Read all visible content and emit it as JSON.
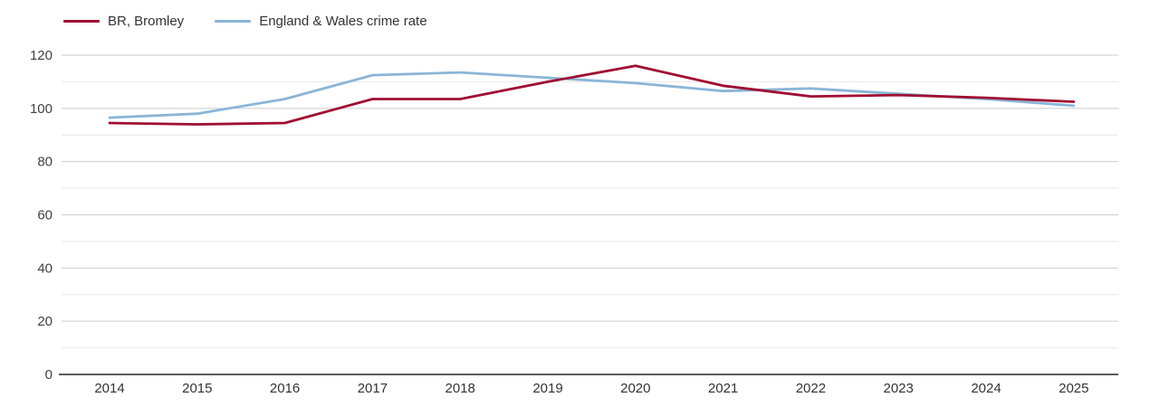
{
  "legend": {
    "items": [
      {
        "label": "BR, Bromley",
        "color": "#a00e32"
      },
      {
        "label": "England & Wales crime rate",
        "color": "#8ab5d7"
      }
    ]
  },
  "chart_data": {
    "type": "line",
    "title": "",
    "xlabel": "",
    "ylabel": "",
    "x": [
      2014,
      2015,
      2016,
      2017,
      2018,
      2019,
      2020,
      2021,
      2022,
      2023,
      2024,
      2025
    ],
    "series": [
      {
        "name": "England & Wales crime rate",
        "color": "#8ab5d7",
        "values": [
          96.5,
          98,
          103.5,
          112.5,
          113.5,
          111.5,
          109.5,
          106.5,
          107.5,
          105.5,
          103.5,
          101
        ]
      },
      {
        "name": "BR, Bromley",
        "color": "#a00e32",
        "values": [
          94.5,
          94,
          94.5,
          103.5,
          103.5,
          110,
          116,
          108.5,
          104.5,
          105,
          104,
          102.5
        ]
      }
    ],
    "ylim": [
      0,
      120
    ],
    "ytick_label_step": 20,
    "ygrid_step": 10,
    "grid": true,
    "legend_position": "top-left",
    "style": {
      "grid_major_color": "#cbcbcb",
      "grid_minor_color": "#e7e7e7",
      "axis_color": "#262626",
      "tick_text_color": "#404040",
      "line_width": 2.8
    }
  }
}
